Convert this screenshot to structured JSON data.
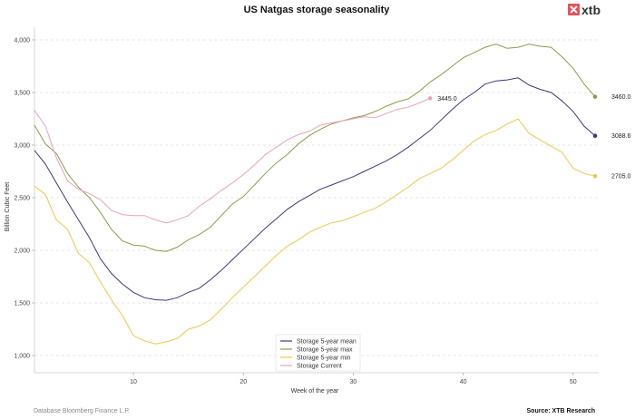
{
  "logo": {
    "text": "xtb"
  },
  "footer": {
    "database": "Database Bloomberg Finance L.P.",
    "source": "Source: XTB Research"
  },
  "chart_data": {
    "type": "line",
    "title": "US Natgas storage seasonality",
    "xlabel": "Week of the year",
    "ylabel": "Billion Cubic Feet",
    "xlim": [
      1,
      52
    ],
    "ylim": [
      860,
      4300
    ],
    "xticks": [
      10,
      20,
      30,
      40,
      50
    ],
    "xtick_labels": [
      "10",
      "20",
      "30",
      "40",
      "50"
    ],
    "yticks": [
      1000,
      1500,
      2000,
      2500,
      3000,
      3500,
      4000
    ],
    "ytick_labels": [
      "1,000",
      "1,500",
      "2,000",
      "2,500",
      "3,000",
      "3,500",
      "4,000"
    ],
    "grid": "horizontal dashed",
    "legend_position": "bottom-center",
    "series": [
      {
        "name": "Storage 5-year mean",
        "color": "#3b3a78",
        "end_label": "3088.6",
        "values": [
          2950,
          2820,
          2640,
          2460,
          2290,
          2120,
          1920,
          1780,
          1680,
          1600,
          1550,
          1530,
          1525,
          1550,
          1600,
          1640,
          1720,
          1810,
          1910,
          2010,
          2110,
          2210,
          2300,
          2390,
          2460,
          2520,
          2580,
          2620,
          2660,
          2700,
          2750,
          2800,
          2850,
          2910,
          2980,
          3060,
          3140,
          3240,
          3340,
          3430,
          3500,
          3580,
          3610,
          3620,
          3640,
          3570,
          3530,
          3500,
          3420,
          3320,
          3180,
          3088.6
        ]
      },
      {
        "name": "Storage 5-year max",
        "color": "#8e9a4c",
        "end_label": "3460.0",
        "values": [
          3190,
          3010,
          2920,
          2730,
          2600,
          2500,
          2360,
          2200,
          2090,
          2050,
          2040,
          2000,
          1990,
          2030,
          2100,
          2150,
          2220,
          2330,
          2440,
          2510,
          2620,
          2730,
          2830,
          2910,
          3010,
          3090,
          3150,
          3200,
          3230,
          3260,
          3280,
          3320,
          3370,
          3410,
          3440,
          3510,
          3600,
          3670,
          3750,
          3830,
          3880,
          3930,
          3960,
          3920,
          3930,
          3960,
          3940,
          3930,
          3840,
          3730,
          3580,
          3460
        ]
      },
      {
        "name": "Storage 5-year min",
        "color": "#f0c64a",
        "end_label": "2705.0",
        "values": [
          2610,
          2530,
          2290,
          2200,
          1970,
          1880,
          1700,
          1530,
          1380,
          1190,
          1140,
          1110,
          1130,
          1160,
          1250,
          1280,
          1340,
          1440,
          1550,
          1650,
          1750,
          1850,
          1950,
          2040,
          2100,
          2170,
          2220,
          2260,
          2280,
          2320,
          2360,
          2400,
          2460,
          2530,
          2600,
          2680,
          2730,
          2780,
          2860,
          2950,
          3040,
          3100,
          3140,
          3200,
          3250,
          3110,
          3050,
          2990,
          2930,
          2780,
          2730,
          2705
        ]
      },
      {
        "name": "Storage Current",
        "color": "#e9a3b8",
        "end_label": "3445.0",
        "values": [
          3330,
          3180,
          2880,
          2660,
          2580,
          2540,
          2480,
          2380,
          2340,
          2330,
          2330,
          2290,
          2260,
          2290,
          2330,
          2420,
          2490,
          2570,
          2640,
          2720,
          2810,
          2910,
          2980,
          3050,
          3100,
          3130,
          3190,
          3210,
          3230,
          3250,
          3270,
          3260,
          3300,
          3340,
          3360,
          3400,
          3445
        ]
      }
    ]
  }
}
